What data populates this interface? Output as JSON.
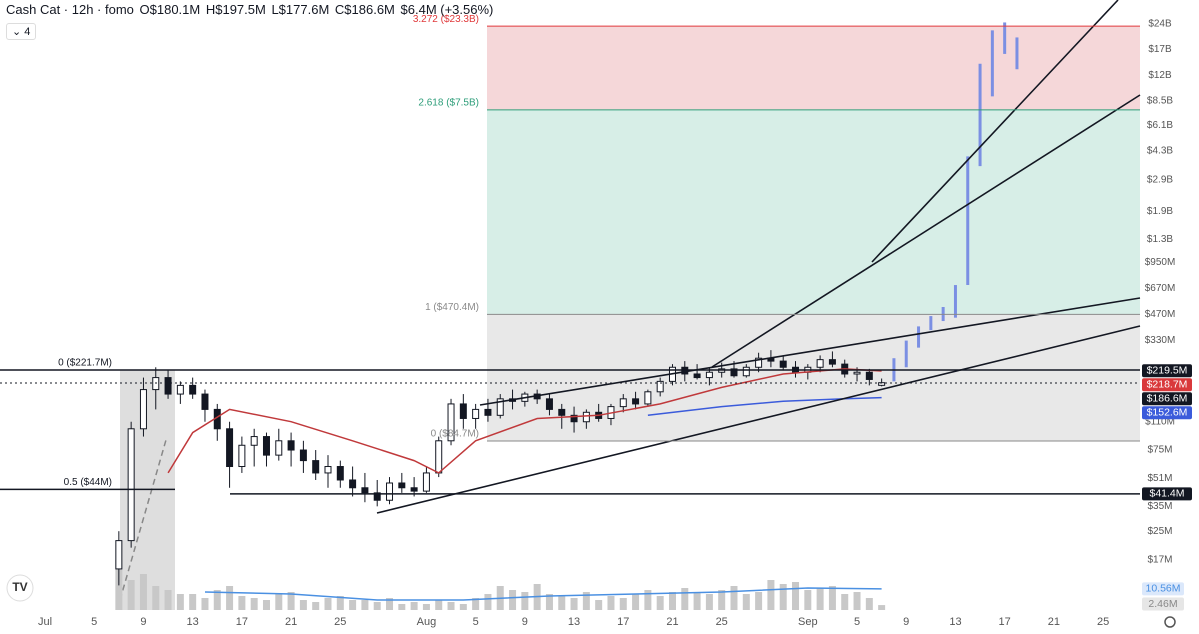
{
  "header": {
    "symbol": "Cash Cat · 12h · fomo",
    "ohlc": [
      "O$180.1M",
      "H$197.5M",
      "L$177.6M",
      "C$186.6M"
    ],
    "change": "$6.4M (+3.56%)",
    "indicators": "4"
  },
  "chart_data": {
    "type": "candlestick",
    "log_scale": true,
    "ylim": [
      8600000.0,
      33200000000.0
    ],
    "xlim": [
      -3.66,
      89
    ],
    "yticks": [
      {
        "value": 24000000000.0,
        "label": "$24B"
      },
      {
        "value": 17000000000.0,
        "label": "$17B"
      },
      {
        "value": 12000000000.0,
        "label": "$12B"
      },
      {
        "value": 8500000000.0,
        "label": "$8.5B"
      },
      {
        "value": 6100000000.0,
        "label": "$6.1B"
      },
      {
        "value": 4300000000.0,
        "label": "$4.3B"
      },
      {
        "value": 2900000000.0,
        "label": "$2.9B"
      },
      {
        "value": 1900000000.0,
        "label": "$1.9B"
      },
      {
        "value": 1300000000.0,
        "label": "$1.3B"
      },
      {
        "value": 950000000.0,
        "label": "$950M"
      },
      {
        "value": 670000000.0,
        "label": "$670M"
      },
      {
        "value": 470000000.0,
        "label": "$470M"
      },
      {
        "value": 330000000.0,
        "label": "$330M"
      },
      {
        "value": 110000000.0,
        "label": "$110M"
      },
      {
        "value": 75000000.0,
        "label": "$75M"
      },
      {
        "value": 51000000.0,
        "label": "$51M"
      },
      {
        "value": 35000000.0,
        "label": "$35M"
      },
      {
        "value": 25000000.0,
        "label": "$25M"
      },
      {
        "value": 17000000.0,
        "label": "$17M"
      }
    ],
    "xticks": [
      {
        "value": 0,
        "label": "Jul"
      },
      {
        "value": 4,
        "label": "5"
      },
      {
        "value": 8,
        "label": "9"
      },
      {
        "value": 12,
        "label": "13"
      },
      {
        "value": 16,
        "label": "17"
      },
      {
        "value": 20,
        "label": "21"
      },
      {
        "value": 24,
        "label": "25"
      },
      {
        "value": 31,
        "label": "Aug"
      },
      {
        "value": 35,
        "label": "5"
      },
      {
        "value": 39,
        "label": "9"
      },
      {
        "value": 43,
        "label": "13"
      },
      {
        "value": 47,
        "label": "17"
      },
      {
        "value": 51,
        "label": "21"
      },
      {
        "value": 55,
        "label": "25"
      },
      {
        "value": 62,
        "label": "Sep"
      },
      {
        "value": 66,
        "label": "5"
      },
      {
        "value": 70,
        "label": "9"
      },
      {
        "value": 74,
        "label": "13"
      },
      {
        "value": 78,
        "label": "17"
      },
      {
        "value": 82,
        "label": "21"
      },
      {
        "value": 86,
        "label": "25"
      }
    ],
    "up_color": "#ffffff",
    "down_color": "#131722",
    "candles": [
      {
        "x": 6,
        "open": 15000000.0,
        "high": 25000000.0,
        "low": 12000000.0,
        "close": 22000000.0
      },
      {
        "x": 7,
        "open": 22000000.0,
        "high": 110000000.0,
        "low": 20000000.0,
        "close": 100000000.0
      },
      {
        "x": 8,
        "open": 100000000.0,
        "high": 200000000.0,
        "low": 90000000.0,
        "close": 170000000.0
      },
      {
        "x": 9,
        "open": 170000000.0,
        "high": 230000000.0,
        "low": 130000000.0,
        "close": 200000000.0
      },
      {
        "x": 10,
        "open": 200000000.0,
        "high": 220000000.0,
        "low": 150000000.0,
        "close": 160000000.0
      },
      {
        "x": 11,
        "open": 160000000.0,
        "high": 190000000.0,
        "low": 140000000.0,
        "close": 180000000.0
      },
      {
        "x": 12,
        "open": 180000000.0,
        "high": 200000000.0,
        "low": 150000000.0,
        "close": 160000000.0
      },
      {
        "x": 13,
        "open": 160000000.0,
        "high": 170000000.0,
        "low": 110000000.0,
        "close": 130000000.0
      },
      {
        "x": 14,
        "open": 130000000.0,
        "high": 140000000.0,
        "low": 85000000.0,
        "close": 100000000.0
      },
      {
        "x": 15,
        "open": 100000000.0,
        "high": 110000000.0,
        "low": 45000000.0,
        "close": 60000000.0
      },
      {
        "x": 16,
        "open": 60000000.0,
        "high": 90000000.0,
        "low": 55000000.0,
        "close": 80000000.0
      },
      {
        "x": 17,
        "open": 80000000.0,
        "high": 100000000.0,
        "low": 60000000.0,
        "close": 90000000.0
      },
      {
        "x": 18,
        "open": 90000000.0,
        "high": 95000000.0,
        "low": 60000000.0,
        "close": 70000000.0
      },
      {
        "x": 19,
        "open": 70000000.0,
        "high": 100000000.0,
        "low": 65000000.0,
        "close": 85000000.0
      },
      {
        "x": 20,
        "open": 85000000.0,
        "high": 95000000.0,
        "low": 60000000.0,
        "close": 75000000.0
      },
      {
        "x": 21,
        "open": 75000000.0,
        "high": 85000000.0,
        "low": 55000000.0,
        "close": 65000000.0
      },
      {
        "x": 22,
        "open": 65000000.0,
        "high": 75000000.0,
        "low": 50000000.0,
        "close": 55000000.0
      },
      {
        "x": 23,
        "open": 55000000.0,
        "high": 70000000.0,
        "low": 45000000.0,
        "close": 60000000.0
      },
      {
        "x": 24,
        "open": 60000000.0,
        "high": 65000000.0,
        "low": 45000000.0,
        "close": 50000000.0
      },
      {
        "x": 25,
        "open": 50000000.0,
        "high": 60000000.0,
        "low": 40000000.0,
        "close": 45000000.0
      },
      {
        "x": 26,
        "open": 45000000.0,
        "high": 55000000.0,
        "low": 37000000.0,
        "close": 42000000.0
      },
      {
        "x": 27,
        "open": 42000000.0,
        "high": 50000000.0,
        "low": 35000000.0,
        "close": 38000000.0
      },
      {
        "x": 28,
        "open": 38000000.0,
        "high": 52000000.0,
        "low": 36000000.0,
        "close": 48000000.0
      },
      {
        "x": 29,
        "open": 48000000.0,
        "high": 55000000.0,
        "low": 42000000.0,
        "close": 45000000.0
      },
      {
        "x": 30,
        "open": 45000000.0,
        "high": 52000000.0,
        "low": 40000000.0,
        "close": 43000000.0
      },
      {
        "x": 31,
        "open": 43000000.0,
        "high": 60000000.0,
        "low": 42000000.0,
        "close": 55000000.0
      },
      {
        "x": 32,
        "open": 55000000.0,
        "high": 90000000.0,
        "low": 52000000.0,
        "close": 85000000.0
      },
      {
        "x": 33,
        "open": 85000000.0,
        "high": 150000000.0,
        "low": 80000000.0,
        "close": 140000000.0
      },
      {
        "x": 34,
        "open": 140000000.0,
        "high": 160000000.0,
        "low": 100000000.0,
        "close": 115000000.0
      },
      {
        "x": 35,
        "open": 115000000.0,
        "high": 140000000.0,
        "low": 100000000.0,
        "close": 130000000.0
      },
      {
        "x": 36,
        "open": 130000000.0,
        "high": 150000000.0,
        "low": 110000000.0,
        "close": 120000000.0
      },
      {
        "x": 37,
        "open": 120000000.0,
        "high": 160000000.0,
        "low": 115000000.0,
        "close": 150000000.0
      },
      {
        "x": 38,
        "open": 150000000.0,
        "high": 170000000.0,
        "low": 130000000.0,
        "close": 145000000.0
      },
      {
        "x": 39,
        "open": 145000000.0,
        "high": 165000000.0,
        "low": 135000000.0,
        "close": 160000000.0
      },
      {
        "x": 40,
        "open": 160000000.0,
        "high": 170000000.0,
        "low": 140000000.0,
        "close": 150000000.0
      },
      {
        "x": 41,
        "open": 150000000.0,
        "high": 160000000.0,
        "low": 120000000.0,
        "close": 130000000.0
      },
      {
        "x": 42,
        "open": 130000000.0,
        "high": 140000000.0,
        "low": 100000000.0,
        "close": 120000000.0
      },
      {
        "x": 43,
        "open": 120000000.0,
        "high": 135000000.0,
        "low": 95000000.0,
        "close": 110000000.0
      },
      {
        "x": 44,
        "open": 110000000.0,
        "high": 130000000.0,
        "low": 100000000.0,
        "close": 125000000.0
      },
      {
        "x": 45,
        "open": 125000000.0,
        "high": 140000000.0,
        "low": 110000000.0,
        "close": 115000000.0
      },
      {
        "x": 46,
        "open": 115000000.0,
        "high": 140000000.0,
        "low": 105000000.0,
        "close": 135000000.0
      },
      {
        "x": 47,
        "open": 135000000.0,
        "high": 160000000.0,
        "low": 125000000.0,
        "close": 150000000.0
      },
      {
        "x": 48,
        "open": 150000000.0,
        "high": 165000000.0,
        "low": 130000000.0,
        "close": 140000000.0
      },
      {
        "x": 49,
        "open": 140000000.0,
        "high": 170000000.0,
        "low": 135000000.0,
        "close": 165000000.0
      },
      {
        "x": 50,
        "open": 165000000.0,
        "high": 200000000.0,
        "low": 155000000.0,
        "close": 190000000.0
      },
      {
        "x": 51,
        "open": 190000000.0,
        "high": 240000000.0,
        "low": 180000000.0,
        "close": 230000000.0
      },
      {
        "x": 52,
        "open": 230000000.0,
        "high": 250000000.0,
        "low": 190000000.0,
        "close": 210000000.0
      },
      {
        "x": 53,
        "open": 210000000.0,
        "high": 240000000.0,
        "low": 195000000.0,
        "close": 200000000.0
      },
      {
        "x": 54,
        "open": 200000000.0,
        "high": 230000000.0,
        "low": 180000000.0,
        "close": 215000000.0
      },
      {
        "x": 55,
        "open": 215000000.0,
        "high": 245000000.0,
        "low": 200000000.0,
        "close": 225000000.0
      },
      {
        "x": 56,
        "open": 225000000.0,
        "high": 250000000.0,
        "low": 200000000.0,
        "close": 205000000.0
      },
      {
        "x": 57,
        "open": 205000000.0,
        "high": 240000000.0,
        "low": 200000000.0,
        "close": 230000000.0
      },
      {
        "x": 58,
        "open": 230000000.0,
        "high": 280000000.0,
        "low": 215000000.0,
        "close": 260000000.0
      },
      {
        "x": 59,
        "open": 260000000.0,
        "high": 290000000.0,
        "low": 230000000.0,
        "close": 250000000.0
      },
      {
        "x": 60,
        "open": 250000000.0,
        "high": 270000000.0,
        "low": 220000000.0,
        "close": 230000000.0
      },
      {
        "x": 61,
        "open": 230000000.0,
        "high": 250000000.0,
        "low": 200000000.0,
        "close": 215000000.0
      },
      {
        "x": 62,
        "open": 215000000.0,
        "high": 240000000.0,
        "low": 195000000.0,
        "close": 230000000.0
      },
      {
        "x": 63,
        "open": 230000000.0,
        "high": 270000000.0,
        "low": 215000000.0,
        "close": 255000000.0
      },
      {
        "x": 64,
        "open": 255000000.0,
        "high": 285000000.0,
        "low": 230000000.0,
        "close": 240000000.0
      },
      {
        "x": 65,
        "open": 240000000.0,
        "high": 255000000.0,
        "low": 200000000.0,
        "close": 210000000.0
      },
      {
        "x": 66,
        "open": 210000000.0,
        "high": 230000000.0,
        "low": 190000000.0,
        "close": 215000000.0
      },
      {
        "x": 67,
        "open": 215000000.0,
        "high": 225000000.0,
        "low": 180000000.0,
        "close": 195000000.0
      },
      {
        "x": 68,
        "open": 180100000.0,
        "high": 197500000.0,
        "low": 177600000.0,
        "close": 186600000.0
      }
    ],
    "projection": {
      "color": "#7b8fe3",
      "bars": [
        {
          "x": 69,
          "high": 260000000.0,
          "low": 190000000.0
        },
        {
          "x": 70,
          "high": 330000000.0,
          "low": 230000000.0
        },
        {
          "x": 71,
          "high": 400000000.0,
          "low": 300000000.0
        },
        {
          "x": 72,
          "high": 460000000.0,
          "low": 380000000.0
        },
        {
          "x": 73,
          "high": 520000000.0,
          "low": 430000000.0
        },
        {
          "x": 74,
          "high": 700000000.0,
          "low": 450000000.0
        },
        {
          "x": 75,
          "high": 4000000000.0,
          "low": 700000000.0
        },
        {
          "x": 76,
          "high": 14000000000.0,
          "low": 3500000000.0
        },
        {
          "x": 77,
          "high": 22000000000.0,
          "low": 9000000000.0
        },
        {
          "x": 78,
          "high": 24500000000.0,
          "low": 16000000000.0
        },
        {
          "x": 79,
          "high": 20000000000.0,
          "low": 13000000000.0
        }
      ]
    },
    "moving_averages": [
      {
        "color": "#c0393b",
        "x": [
          10,
          12,
          15,
          20,
          25,
          30,
          32,
          35,
          40,
          45,
          50,
          55,
          60,
          65,
          68
        ],
        "values": [
          55000000.0,
          95000000.0,
          130000000.0,
          110000000.0,
          85000000.0,
          65000000.0,
          55000000.0,
          85000000.0,
          115000000.0,
          120000000.0,
          140000000.0,
          175000000.0,
          210000000.0,
          225000000.0,
          218700000.0
        ]
      },
      {
        "color": "#3b5bdb",
        "x": [
          49,
          55,
          60,
          65,
          68
        ],
        "values": [
          120000000.0,
          135000000.0,
          145000000.0,
          150000000.0,
          152600000.0
        ]
      }
    ],
    "volume": {
      "color": "#c8c8c8",
      "vlim": [
        0,
        30000000.0
      ],
      "values": [
        25000000.0,
        15000000.0,
        18000000.0,
        12000000.0,
        10000000.0,
        8000000.0,
        8000000.0,
        6000000.0,
        10000000.0,
        12000000.0,
        7000000.0,
        6000000.0,
        5000000.0,
        8000000.0,
        9000000.0,
        5000000.0,
        4000000.0,
        6000000.0,
        7000000.0,
        5000000.0,
        5000000.0,
        4000000.0,
        6000000.0,
        3000000.0,
        4000000.0,
        3000000.0,
        5000000.0,
        4000000.0,
        3000000.0,
        6000000.0,
        8000000.0,
        12000000.0,
        10000000.0,
        9000000.0,
        13000000.0,
        8000000.0,
        7000000.0,
        6000000.0,
        9000000.0,
        5000000.0,
        7000000.0,
        6000000.0,
        8000000.0,
        10000000.0,
        7000000.0,
        9000000.0,
        11000000.0,
        9000000.0,
        8000000.0,
        10000000.0,
        12000000.0,
        8000000.0,
        9000000.0,
        15000000.0,
        13000000.0,
        14000000.0,
        10000000.0,
        11000000.0,
        12000000.0,
        8000000.0,
        9000000.0,
        6000000.0,
        2460000.0
      ],
      "ma": {
        "color": "#4a90e2",
        "x": [
          13,
          20,
          27,
          34,
          41,
          48,
          55,
          62,
          68
        ],
        "values": [
          9000000.0,
          8000000.0,
          5000000.0,
          5000000.0,
          7000000.0,
          8000000.0,
          9000000.0,
          11000000.0,
          10560000.0
        ]
      }
    },
    "fib_sets": [
      {
        "levels": [
          {
            "value": 23300000000.0,
            "label": "3.272 ($23.3B)",
            "color": "#e0393b",
            "fill": "#f5d7d9"
          },
          {
            "value": 7500000000.0,
            "label": "2.618 ($7.5B)",
            "color": "#2e9e7a",
            "fill": "#d7eee7"
          },
          {
            "value": 470400000.0,
            "label": "1 ($470.4M)",
            "color": "#8a8a8a",
            "fill": "#e8e8e8"
          },
          {
            "value": 84700000.0,
            "label": "0 ($84.7M)",
            "color": "#8a8a8a"
          }
        ]
      },
      {
        "levels": [
          {
            "value": 221700000.0,
            "label": "0 ($221.7M)",
            "color": "#131722"
          },
          {
            "value": 44000000.0,
            "label": "0.5 ($44M)",
            "color": "#131722"
          }
        ]
      }
    ],
    "price_labels": [
      {
        "value": 219500000.0,
        "label": "$219.5M",
        "color": "#131722"
      },
      {
        "value": 218700000.0,
        "label": "$218.7M",
        "color": "#d9393b"
      },
      {
        "value": 186600000.0,
        "label": "$186.6M",
        "color": "#131722"
      },
      {
        "value": 152600000.0,
        "label": "$152.6M",
        "color": "#3b5bdb"
      },
      {
        "value": 41400000.0,
        "label": "$41.4M",
        "color": "#131722"
      }
    ],
    "volume_labels": [
      {
        "value": 10560000.0,
        "label": "10.56M",
        "color": "#4a90e2"
      },
      {
        "value": 2460000.0,
        "label": "2.46M",
        "color": "#888888"
      }
    ]
  }
}
